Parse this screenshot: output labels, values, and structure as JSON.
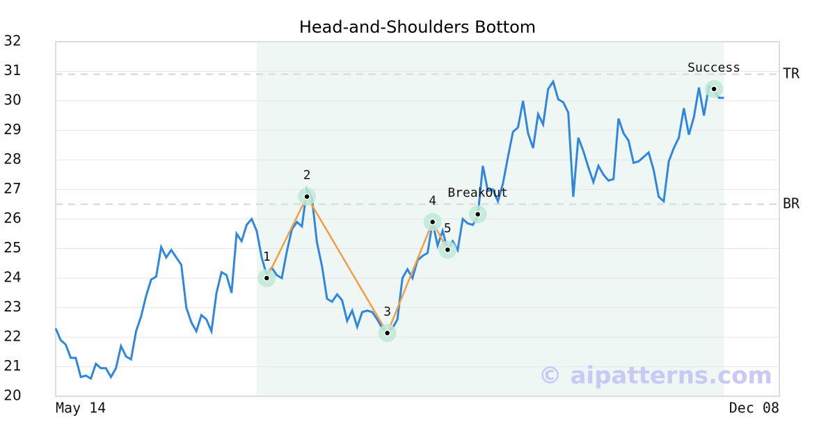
{
  "chart_data": {
    "type": "line",
    "title": "Head-and-Shoulders Bottom",
    "series": [
      {
        "name": "Price",
        "color": "#2e86de",
        "values": [
          22.3,
          21.9,
          21.75,
          21.3,
          21.3,
          20.65,
          20.7,
          20.6,
          21.1,
          20.95,
          20.95,
          20.65,
          20.95,
          21.7,
          21.35,
          21.25,
          22.2,
          22.7,
          23.4,
          23.95,
          24.05,
          25.05,
          24.7,
          24.95,
          24.7,
          24.45,
          23.0,
          22.5,
          22.2,
          22.75,
          22.6,
          22.2,
          23.5,
          24.2,
          24.1,
          23.5,
          25.5,
          25.25,
          25.8,
          26.0,
          25.6,
          24.7,
          24.1,
          24.35,
          24.1,
          24.0,
          24.9,
          25.65,
          25.9,
          25.75,
          27.0,
          26.7,
          25.2,
          24.4,
          23.3,
          23.2,
          23.45,
          23.25,
          22.55,
          22.9,
          22.35,
          22.85,
          22.9,
          22.85,
          22.6,
          22.3,
          22.2,
          22.3,
          22.6,
          24.0,
          24.3,
          24.0,
          24.6,
          24.75,
          24.85,
          25.9,
          25.1,
          25.6,
          24.95,
          25.25,
          24.95,
          26.0,
          25.85,
          25.8,
          26.1,
          27.8,
          26.95,
          27.0,
          26.6,
          27.2,
          28.1,
          28.95,
          29.1,
          30.0,
          28.9,
          28.4,
          29.55,
          29.2,
          30.4,
          30.65,
          30.05,
          29.95,
          29.6,
          26.75,
          28.75,
          28.3,
          27.75,
          27.25,
          27.8,
          27.5,
          27.3,
          27.35,
          29.4,
          28.9,
          28.65,
          27.9,
          27.95,
          28.1,
          28.25,
          27.65,
          26.75,
          26.6,
          27.95,
          28.4,
          28.75,
          29.75,
          28.85,
          29.45,
          30.45,
          29.5,
          30.5,
          30.35,
          30.1,
          30.1
        ]
      }
    ],
    "pattern": {
      "color": "#f39c45",
      "x": [
        42,
        50,
        66,
        75,
        78
      ],
      "values": [
        24.0,
        26.76,
        22.14,
        25.9,
        24.96
      ],
      "labels": [
        "1",
        "2",
        "3",
        "4",
        "5"
      ]
    },
    "signals": {
      "x": [
        84,
        131
      ],
      "values": [
        26.16,
        30.4
      ],
      "labels": [
        "BreakOut",
        "Success"
      ]
    },
    "reference_lines": [
      {
        "label": "TR",
        "value": 30.9
      },
      {
        "label": "BR",
        "value": 26.5
      }
    ],
    "shaded_range": [
      40,
      133
    ],
    "xlim": [
      0,
      144
    ],
    "xticks": [
      {
        "value": 0,
        "label": "May 14"
      },
      {
        "value": 139,
        "label": "Dec 08"
      }
    ],
    "ylim": [
      20,
      32
    ],
    "yticks": [
      20,
      21,
      22,
      23,
      24,
      25,
      26,
      27,
      28,
      29,
      30,
      31,
      32
    ],
    "grid": true,
    "watermark": "© aipatterns.com"
  }
}
